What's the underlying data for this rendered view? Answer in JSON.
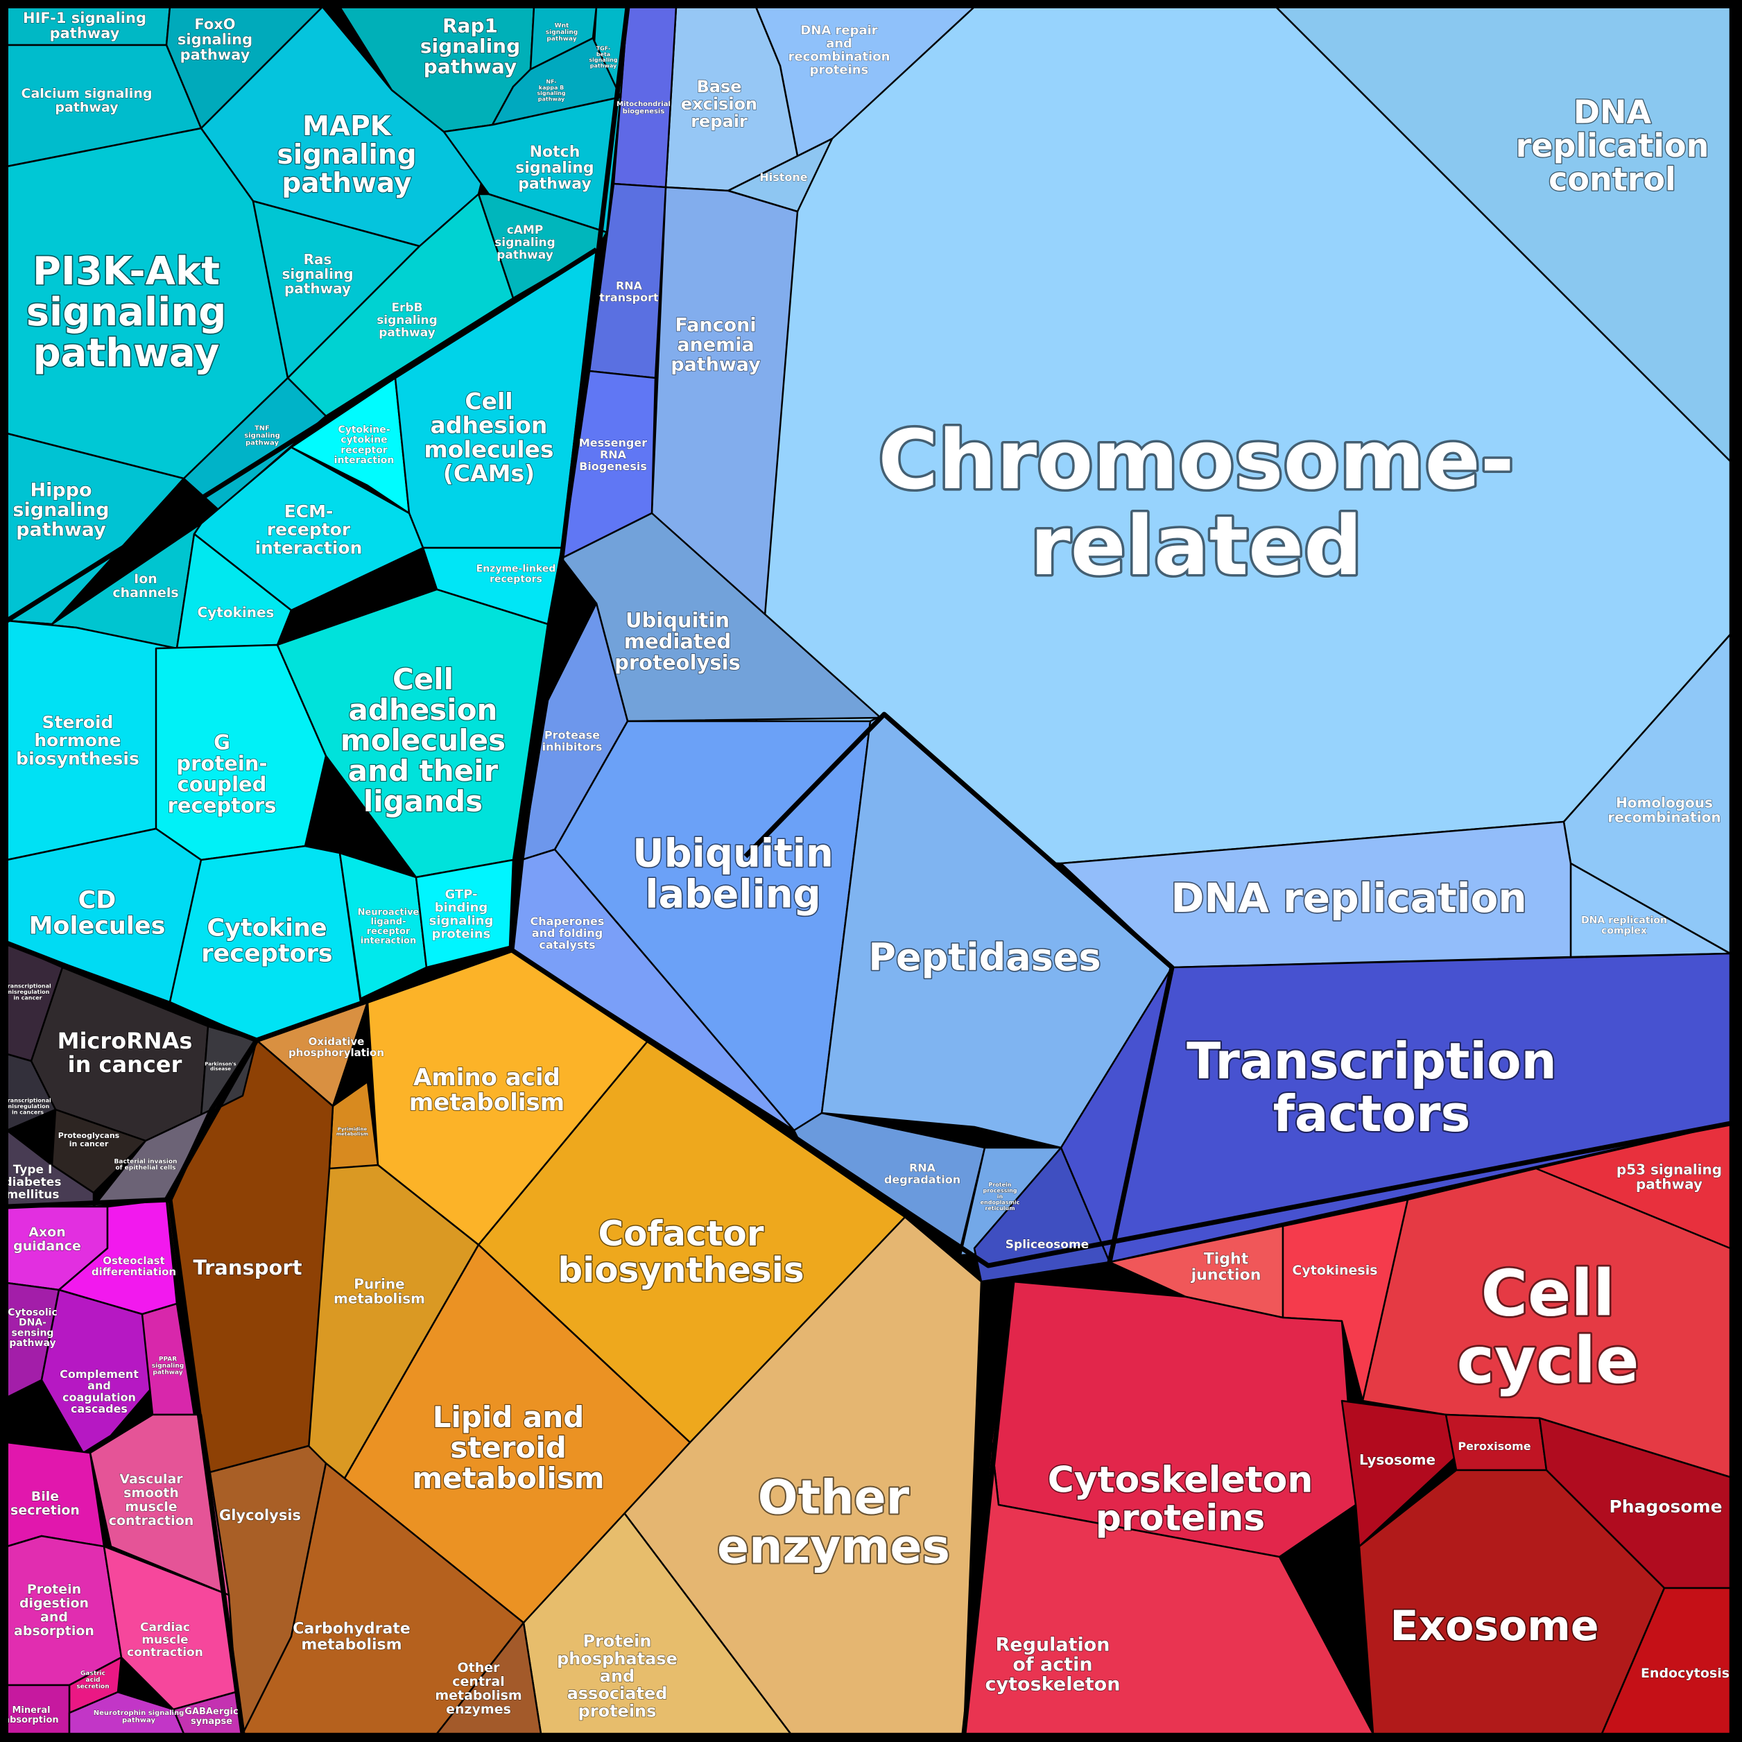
{
  "cells": [
    {
      "id": "chromosome-related",
      "label": "Chromosome-\nrelated",
      "fill": "#97d3fd"
    },
    {
      "id": "dna-replication-control",
      "label": "DNA\nreplication\ncontrol",
      "fill": "#8ac8f0"
    },
    {
      "id": "homologous-recombination",
      "label": "Homologous\nrecombination",
      "fill": "#8fc8f8"
    },
    {
      "id": "dna-replication-complex",
      "label": "DNA replication\ncomplex",
      "fill": "#93c9fb"
    },
    {
      "id": "dna-replication",
      "label": "DNA replication",
      "fill": "#92bdfa"
    },
    {
      "id": "dna-repair",
      "label": "DNA repair\nand\nrecombination\nproteins",
      "fill": "#8fc1fa"
    },
    {
      "id": "base-excision-repair",
      "label": "Base\nexcision\nrepair",
      "fill": "#96c7f5"
    },
    {
      "id": "histone",
      "label": "Histone",
      "fill": "#8ec6f2"
    },
    {
      "id": "fanconi-anemia",
      "label": "Fanconi\nanemia\npathway",
      "fill": "#82aded"
    },
    {
      "id": "mitochondrial-biogenesis",
      "label": "Mitochondrial\nbiogenesis",
      "fill": "#5f69e6"
    },
    {
      "id": "rna-transport",
      "label": "RNA\ntransport",
      "fill": "#5a70e1"
    },
    {
      "id": "messenger-rna-biogenesis",
      "label": "Messenger\nRNA\nBiogenesis",
      "fill": "#6077f4"
    },
    {
      "id": "ubiquitin-mediated-proteolysis",
      "label": "Ubiquitin\nmediated\nproteolysis",
      "fill": "#72a2da"
    },
    {
      "id": "protease-inhibitors",
      "label": "Protease\ninhibitors",
      "fill": "#6d97ec"
    },
    {
      "id": "ubiquitin-labeling",
      "label": "Ubiquitin\nlabeling",
      "fill": "#6ba1f7"
    },
    {
      "id": "chaperones",
      "label": "Chaperones\nand folding\ncatalysts",
      "fill": "#7a9ff8"
    },
    {
      "id": "peptidases",
      "label": "Peptidases",
      "fill": "#7fb4f1"
    },
    {
      "id": "rna-degradation",
      "label": "RNA\ndegradation",
      "fill": "#6a9add"
    },
    {
      "id": "protein-processing-er",
      "label": "Protein\nprocessing\nin\nendoplasmic\nreticulum",
      "fill": "#73a8e8"
    },
    {
      "id": "transcription-factors",
      "label": "Transcription\nfactors",
      "fill": "#4752d0"
    },
    {
      "id": "spliceosome",
      "label": "Spliceosome",
      "fill": "#3f4fc1"
    },
    {
      "id": "p53-signaling",
      "label": "p53 signaling\npathway",
      "fill": "#e8303d"
    },
    {
      "id": "tight-junction",
      "label": "Tight\njunction",
      "fill": "#f05759"
    },
    {
      "id": "cytokinesis",
      "label": "Cytokinesis",
      "fill": "#f53b4c"
    },
    {
      "id": "cell-cycle",
      "label": "Cell\ncycle",
      "fill": "#e53a44"
    },
    {
      "id": "cytoskeleton-proteins",
      "label": "Cytoskeleton\nproteins",
      "fill": "#e2264b"
    },
    {
      "id": "regulation-actin",
      "label": "Regulation\nof actin\ncytoskeleton",
      "fill": "#e93451"
    },
    {
      "id": "lysosome",
      "label": "Lysosome",
      "fill": "#b20a1e"
    },
    {
      "id": "peroxisome",
      "label": "Peroxisome",
      "fill": "#c01424"
    },
    {
      "id": "phagosome",
      "label": "Phagosome",
      "fill": "#b00c1f"
    },
    {
      "id": "exosome",
      "label": "Exosome",
      "fill": "#b11a1a"
    },
    {
      "id": "endocytosis",
      "label": "Endocytosis",
      "fill": "#c51017"
    },
    {
      "id": "other-enzymes",
      "label": "Other\nenzymes",
      "fill": "#e5b671"
    },
    {
      "id": "protein-phosphatase",
      "label": "Protein\nphosphatase\nand\nassociated\nproteins",
      "fill": "#e7bd6c"
    },
    {
      "id": "cofactor-biosynthesis",
      "label": "Cofactor\nbiosynthesis",
      "fill": "#eea81d"
    },
    {
      "id": "amino-acid-metabolism",
      "label": "Amino acid\nmetabolism",
      "fill": "#fcb328"
    },
    {
      "id": "lipid-steroid",
      "label": "Lipid and\nsteroid\nmetabolism",
      "fill": "#eb9223"
    },
    {
      "id": "purine-metabolism",
      "label": "Purine\nmetabolism",
      "fill": "#da9923"
    },
    {
      "id": "pyrimidine-metabolism",
      "label": "Pyrimidine\nmetabolism",
      "fill": "#d88a1f"
    },
    {
      "id": "oxidative-phosphorylation",
      "label": "Oxidative\nphosphorylation",
      "fill": "#d99041"
    },
    {
      "id": "transport",
      "label": "Transport",
      "fill": "#8e4105"
    },
    {
      "id": "glycolysis",
      "label": "Glycolysis",
      "fill": "#a95f26"
    },
    {
      "id": "carbohydrate-metabolism",
      "label": "Carbohydrate\nmetabolism",
      "fill": "#b5611e"
    },
    {
      "id": "other-central-metabolism",
      "label": "Other\ncentral\nmetabolism\nenzymes",
      "fill": "#a35a2a"
    },
    {
      "id": "microrna-in-cancer",
      "label": "MicroRNAs\nin cancer",
      "fill": "#302a2d"
    },
    {
      "id": "transcriptional-misreg-1",
      "label": "Transcriptional\nmisregulation\nin cancer",
      "fill": "#38283a"
    },
    {
      "id": "transcriptional-misreg-2",
      "label": "Transcriptional\nmisregulation\nin cancers",
      "fill": "#33303b"
    },
    {
      "id": "parkinsons",
      "label": "Parkinson's\ndisease",
      "fill": "#3a393f"
    },
    {
      "id": "proteoglycans",
      "label": "Proteoglycans\nin cancer",
      "fill": "#2d2522"
    },
    {
      "id": "type1-diabetes",
      "label": "Type I\ndiabetes\nmellitus",
      "fill": "#483c53"
    },
    {
      "id": "bacterial-invasion",
      "label": "Bacterial invasion\nof epithelial cells",
      "fill": "#6c6376"
    },
    {
      "id": "axon-guidance",
      "label": "Axon\nguidance",
      "fill": "#e22fe0"
    },
    {
      "id": "osteoclast",
      "label": "Osteoclast\ndifferentiation",
      "fill": "#f219ee"
    },
    {
      "id": "cytosolic-dna",
      "label": "Cytosolic\nDNA-\nsensing\npathway",
      "fill": "#a31ea9"
    },
    {
      "id": "complement",
      "label": "Complement\nand\ncoagulation\ncascades",
      "fill": "#b618c3"
    },
    {
      "id": "ppar",
      "label": "PPAR\nsignaling\npathway",
      "fill": "#d827ab"
    },
    {
      "id": "bile-secretion",
      "label": "Bile\nsecretion",
      "fill": "#e117ad"
    },
    {
      "id": "vascular-smooth-muscle",
      "label": "Vascular\nsmooth\nmuscle\ncontraction",
      "fill": "#e55497"
    },
    {
      "id": "protein-digestion",
      "label": "Protein\ndigestion\nand\nabsorption",
      "fill": "#e12db0"
    },
    {
      "id": "cardiac-muscle",
      "label": "Cardiac\nmuscle\ncontraction",
      "fill": "#f6479c"
    },
    {
      "id": "gastric-acid",
      "label": "Gastric\nacid\nsecretion",
      "fill": "#ea1884"
    },
    {
      "id": "mineral-absorption",
      "label": "Mineral\nabsorption",
      "fill": "#c6199f"
    },
    {
      "id": "neurotrophin",
      "label": "Neurotrophin signaling\npathway",
      "fill": "#c236c7"
    },
    {
      "id": "gabaergic",
      "label": "GABAergic\nsynapse",
      "fill": "#c432b1"
    },
    {
      "id": "hif1",
      "label": "HIF-1 signaling\npathway",
      "fill": "#00b8c5"
    },
    {
      "id": "foxo",
      "label": "FoxO\nsignaling\npathway",
      "fill": "#00aabb"
    },
    {
      "id": "rap1",
      "label": "Rap1\nsignaling\npathway",
      "fill": "#00b0b8"
    },
    {
      "id": "wnt",
      "label": "Wnt\nsignaling\npathway",
      "fill": "#00b3c4"
    },
    {
      "id": "tgf-beta",
      "label": "TGF-\nbeta\nsignaling\npathway",
      "fill": "#00b8c9"
    },
    {
      "id": "nf-kappa-b",
      "label": "NF-\nkappa B\nsignaling\npathway",
      "fill": "#00a9bf"
    },
    {
      "id": "calcium",
      "label": "Calcium signaling\npathway",
      "fill": "#00bccc"
    },
    {
      "id": "mapk",
      "label": "MAPK\nsignaling\npathway",
      "fill": "#05c4dd"
    },
    {
      "id": "notch",
      "label": "Notch\nsignaling\npathway",
      "fill": "#00c1d5"
    },
    {
      "id": "camp",
      "label": "cAMP\nsignaling\npathway",
      "fill": "#00b6bc"
    },
    {
      "id": "pi3k-akt",
      "label": "PI3K-Akt\nsignaling\npathway",
      "fill": "#00c8d5"
    },
    {
      "id": "ras",
      "label": "Ras\nsignaling\npathway",
      "fill": "#00c6d3"
    },
    {
      "id": "erbb",
      "label": "ErbB\nsignaling\npathway",
      "fill": "#00d2d2"
    },
    {
      "id": "tnf",
      "label": "TNF\nsignaling\npathway",
      "fill": "#00b3c8"
    },
    {
      "id": "cytokine-cytokine",
      "label": "Cytokine-\ncytokine\nreceptor\ninteraction",
      "fill": "#00fcff"
    },
    {
      "id": "cams",
      "label": "Cell\nadhesion\nmolecules\n(CAMs)",
      "fill": "#00d3e9"
    },
    {
      "id": "hippo",
      "label": "Hippo\nsignaling\npathway",
      "fill": "#00c3d3"
    },
    {
      "id": "ecm-receptor",
      "label": "ECM-\nreceptor\ninteraction",
      "fill": "#00dced"
    },
    {
      "id": "ion-channels",
      "label": "Ion\nchannels",
      "fill": "#00c5d0"
    },
    {
      "id": "cytokines",
      "label": "Cytokines",
      "fill": "#00e8f0"
    },
    {
      "id": "enzyme-linked",
      "label": "Enzyme-linked\nreceptors",
      "fill": "#00e6f6"
    },
    {
      "id": "steroid-hormone",
      "label": "Steroid\nhormone\nbiosynthesis",
      "fill": "#00e1f4"
    },
    {
      "id": "gpcr",
      "label": "G\nprotein-\ncoupled\nreceptors",
      "fill": "#00f1f7"
    },
    {
      "id": "cell-adhesion-ligands",
      "label": "Cell\nadhesion\nmolecules\nand their\nligands",
      "fill": "#00e2db"
    },
    {
      "id": "cd-molecules",
      "label": "CD\nMolecules",
      "fill": "#00dbf3"
    },
    {
      "id": "cytokine-receptors",
      "label": "Cytokine\nreceptors",
      "fill": "#00e3f4"
    },
    {
      "id": "neuroactive",
      "label": "Neuroactive\nligand-\nreceptor\ninteraction",
      "fill": "#00e9ec"
    },
    {
      "id": "gtp-binding",
      "label": "GTP-\nbinding\nsignaling\nproteins",
      "fill": "#00f5ff"
    }
  ]
}
